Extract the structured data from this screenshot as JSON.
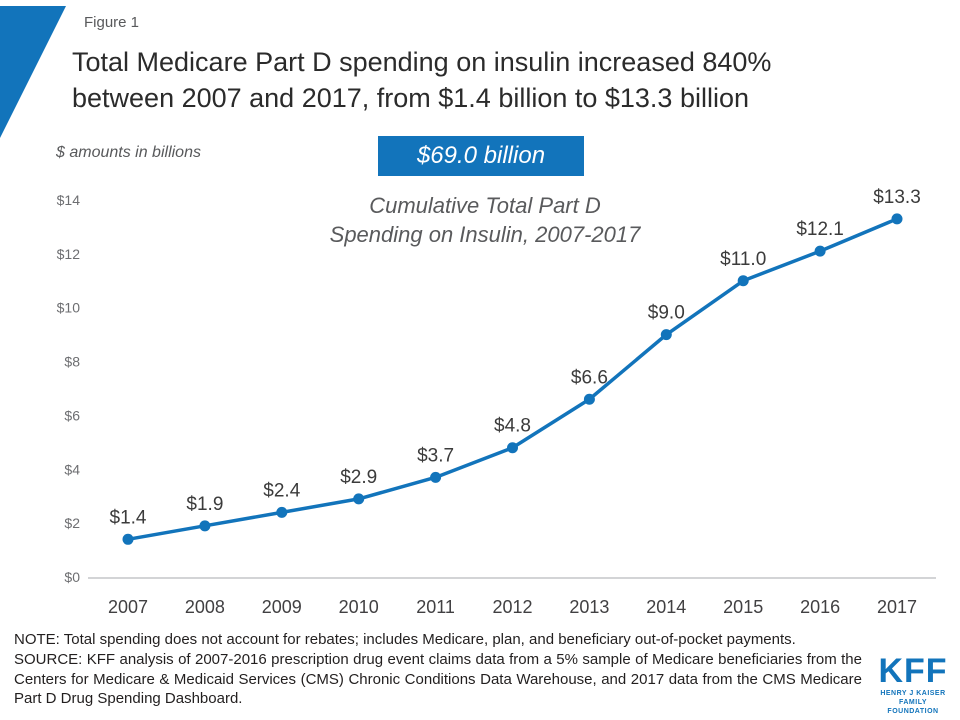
{
  "figure_label": "Figure 1",
  "title": {
    "line1": "Total Medicare Part D spending on insulin increased 840%",
    "line2": "between 2007 and 2017, from $1.4 billion to $13.3 billion"
  },
  "axis_units_note": "$ amounts in billions",
  "badge_label": "$69.0 billion",
  "subtitle": {
    "line1": "Cumulative Total Part D",
    "line2": "Spending on Insulin, 2007-2017"
  },
  "chart_data": {
    "type": "line",
    "title": "Total Medicare Part D spending on insulin, 2007-2017",
    "x": [
      "2007",
      "2008",
      "2009",
      "2010",
      "2011",
      "2012",
      "2013",
      "2014",
      "2015",
      "2016",
      "2017"
    ],
    "values": [
      1.4,
      1.9,
      2.4,
      2.9,
      3.7,
      4.8,
      6.6,
      9.0,
      11.0,
      12.1,
      13.3
    ],
    "point_labels": [
      "$1.4",
      "$1.9",
      "$2.4",
      "$2.9",
      "$3.7",
      "$4.8",
      "$6.6",
      "$9.0",
      "$11.0",
      "$12.1",
      "$13.3"
    ],
    "y_ticks": [
      "$0",
      "$2",
      "$4",
      "$6",
      "$8",
      "$10",
      "$12",
      "$14"
    ],
    "ylim": [
      0,
      14
    ],
    "xlabel": "",
    "ylabel": "$ amounts in billions",
    "grid": false,
    "legend": "none",
    "line_color": "#1274bb"
  },
  "notes": {
    "note": "NOTE: Total spending does not account for rebates; includes Medicare, plan, and beneficiary out-of-pocket payments.",
    "source": "SOURCE: KFF analysis of 2007-2016 prescription drug event claims data from a 5% sample of Medicare beneficiaries from the Centers for Medicare & Medicaid Services (CMS) Chronic Conditions Data Warehouse, and 2017 data from the CMS Medicare Part D Drug Spending Dashboard."
  },
  "logo": {
    "name": "KFF",
    "tagline_line1": "HENRY J KAISER",
    "tagline_line2": "FAMILY FOUNDATION"
  },
  "colors": {
    "brand_blue": "#1274bb"
  }
}
